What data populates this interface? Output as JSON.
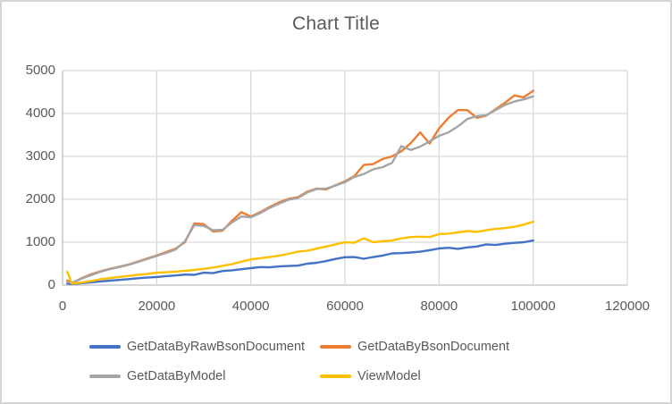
{
  "chart_data": {
    "type": "line",
    "title": "Chart Title",
    "xlabel": "",
    "ylabel": "",
    "xlim": [
      0,
      120000
    ],
    "ylim": [
      0,
      5000
    ],
    "x_ticks": [
      0,
      20000,
      40000,
      60000,
      80000,
      100000,
      120000
    ],
    "y_ticks": [
      0,
      1000,
      2000,
      3000,
      4000,
      5000
    ],
    "grid": true,
    "legend_position": "bottom",
    "x": [
      1000,
      2000,
      4000,
      6000,
      8000,
      10000,
      12000,
      14000,
      16000,
      18000,
      20000,
      22000,
      24000,
      26000,
      28000,
      30000,
      32000,
      34000,
      36000,
      38000,
      40000,
      42000,
      44000,
      46000,
      48000,
      50000,
      52000,
      54000,
      56000,
      58000,
      60000,
      62000,
      64000,
      66000,
      68000,
      70000,
      72000,
      74000,
      76000,
      78000,
      80000,
      82000,
      84000,
      86000,
      88000,
      90000,
      92000,
      94000,
      96000,
      98000,
      100000
    ],
    "series": [
      {
        "name": "GetDataByRawBsonDocument",
        "color": "#4472C4",
        "values": [
          35,
          25,
          45,
          65,
          85,
          105,
          120,
          140,
          160,
          175,
          190,
          210,
          225,
          245,
          240,
          290,
          280,
          330,
          345,
          370,
          395,
          420,
          415,
          435,
          445,
          455,
          500,
          520,
          560,
          610,
          650,
          655,
          615,
          655,
          690,
          740,
          745,
          760,
          780,
          815,
          855,
          870,
          845,
          880,
          900,
          950,
          935,
          965,
          985,
          1000,
          1040
        ]
      },
      {
        "name": "GetDataByBsonDocument",
        "color": "#ED7D31",
        "values": [
          110,
          45,
          160,
          250,
          320,
          380,
          430,
          480,
          550,
          620,
          690,
          770,
          850,
          1000,
          1440,
          1420,
          1250,
          1270,
          1500,
          1700,
          1600,
          1700,
          1820,
          1930,
          2010,
          2050,
          2180,
          2250,
          2230,
          2330,
          2420,
          2540,
          2800,
          2820,
          2940,
          3000,
          3120,
          3310,
          3560,
          3300,
          3650,
          3900,
          4080,
          4080,
          3900,
          3950,
          4100,
          4250,
          4420,
          4380,
          4530
        ]
      },
      {
        "name": "GetDataByModel",
        "color": "#A5A5A5",
        "values": [
          70,
          55,
          150,
          230,
          310,
          370,
          420,
          470,
          540,
          610,
          680,
          750,
          830,
          1020,
          1400,
          1380,
          1280,
          1290,
          1460,
          1600,
          1580,
          1680,
          1800,
          1900,
          1990,
          2030,
          2160,
          2240,
          2250,
          2320,
          2400,
          2520,
          2590,
          2700,
          2750,
          2850,
          3240,
          3150,
          3230,
          3350,
          3480,
          3560,
          3700,
          3870,
          3940,
          3960,
          4080,
          4200,
          4280,
          4330,
          4400
        ]
      },
      {
        "name": "ViewModel",
        "color": "#FFC000",
        "values": [
          310,
          35,
          60,
          95,
          135,
          165,
          190,
          215,
          240,
          260,
          290,
          300,
          310,
          335,
          355,
          380,
          410,
          450,
          490,
          545,
          600,
          625,
          655,
          685,
          730,
          780,
          800,
          850,
          900,
          950,
          1000,
          990,
          1090,
          1000,
          1020,
          1040,
          1090,
          1120,
          1130,
          1120,
          1190,
          1200,
          1230,
          1260,
          1240,
          1280,
          1310,
          1330,
          1360,
          1410,
          1480
        ]
      }
    ],
    "colors": {
      "title_text": "#595959",
      "axis_text": "#595959",
      "gridline": "#D9D9D9",
      "axis_line": "#BFBFBF",
      "frame_border": "#D5D5D5",
      "background": "#FFFFFF"
    }
  }
}
